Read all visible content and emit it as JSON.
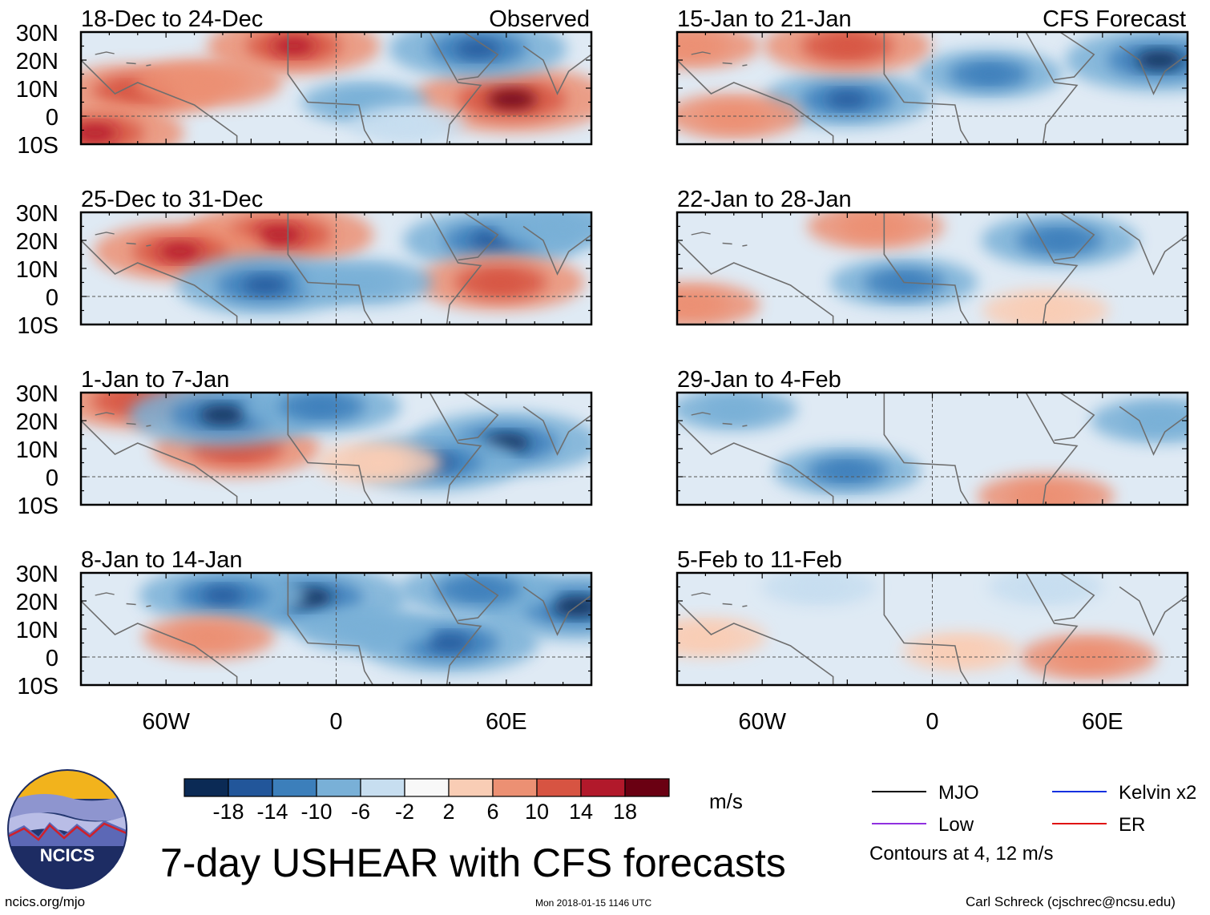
{
  "header": {
    "observed_label": "Observed",
    "forecast_label": "CFS Forecast"
  },
  "chart_data": {
    "type": "heatmap",
    "variable": "7-day USHEAR",
    "units": "m/s",
    "title": "7-day USHEAR with CFS forecasts",
    "lat_ticks": [
      "30N",
      "20N",
      "10N",
      "0",
      "10S"
    ],
    "lon_ticks": [
      "60W",
      "0",
      "60E"
    ],
    "lat_range": [
      -10,
      30
    ],
    "lon_range": [
      -90,
      90
    ],
    "panels": [
      {
        "period": "18-Dec to 24-Dec",
        "source": "Observed",
        "blobs": [
          {
            "lon": 62,
            "lat": 6,
            "value": 20
          },
          {
            "lon": -70,
            "lat": 9,
            "value": 13
          },
          {
            "lon": -15,
            "lat": 25,
            "value": 15
          },
          {
            "lon": 50,
            "lat": 24,
            "value": -16
          },
          {
            "lon": -45,
            "lat": 12,
            "value": 10
          },
          {
            "lon": -85,
            "lat": -6,
            "value": 16
          },
          {
            "lon": 10,
            "lat": 5,
            "value": -6
          },
          {
            "lon": 25,
            "lat": -3,
            "value": -4
          }
        ]
      },
      {
        "period": "25-Dec to 31-Dec",
        "source": "Observed",
        "blobs": [
          {
            "lon": -20,
            "lat": 22,
            "value": 18
          },
          {
            "lon": -55,
            "lat": 16,
            "value": 15
          },
          {
            "lon": -25,
            "lat": 4,
            "value": -16
          },
          {
            "lon": 55,
            "lat": 20,
            "value": -16
          },
          {
            "lon": 58,
            "lat": 5,
            "value": 14
          },
          {
            "lon": 10,
            "lat": 5,
            "value": -8
          },
          {
            "lon": 80,
            "lat": 25,
            "value": -8
          }
        ]
      },
      {
        "period": "1-Jan to 7-Jan",
        "source": "Observed",
        "blobs": [
          {
            "lon": -70,
            "lat": 27,
            "value": 14
          },
          {
            "lon": -35,
            "lat": 10,
            "value": 14
          },
          {
            "lon": -40,
            "lat": 22,
            "value": -18
          },
          {
            "lon": 60,
            "lat": 12,
            "value": -18
          },
          {
            "lon": 35,
            "lat": 5,
            "value": -14
          },
          {
            "lon": -5,
            "lat": 25,
            "value": -12
          },
          {
            "lon": 15,
            "lat": 5,
            "value": 6
          }
        ]
      },
      {
        "period": "8-Jan to 14-Jan",
        "source": "Observed",
        "blobs": [
          {
            "lon": -10,
            "lat": 21,
            "value": -20
          },
          {
            "lon": 85,
            "lat": 18,
            "value": -20
          },
          {
            "lon": 40,
            "lat": 5,
            "value": -16
          },
          {
            "lon": -40,
            "lat": 22,
            "value": -14
          },
          {
            "lon": -45,
            "lat": 7,
            "value": 7
          },
          {
            "lon": 50,
            "lat": 24,
            "value": -12
          },
          {
            "lon": 10,
            "lat": 10,
            "value": -8
          }
        ]
      },
      {
        "period": "15-Jan to 21-Jan",
        "source": "CFS Forecast",
        "blobs": [
          {
            "lon": 80,
            "lat": 20,
            "value": -18
          },
          {
            "lon": -30,
            "lat": 6,
            "value": -14
          },
          {
            "lon": 20,
            "lat": 15,
            "value": -10
          },
          {
            "lon": -30,
            "lat": 25,
            "value": 14
          },
          {
            "lon": -70,
            "lat": 0,
            "value": 8
          },
          {
            "lon": -85,
            "lat": 25,
            "value": 8
          }
        ]
      },
      {
        "period": "22-Jan to 28-Jan",
        "source": "CFS Forecast",
        "blobs": [
          {
            "lon": 45,
            "lat": 20,
            "value": -12
          },
          {
            "lon": -10,
            "lat": 5,
            "value": -10
          },
          {
            "lon": -20,
            "lat": 25,
            "value": 8
          },
          {
            "lon": 40,
            "lat": -5,
            "value": 6
          },
          {
            "lon": -85,
            "lat": -3,
            "value": 8
          }
        ]
      },
      {
        "period": "29-Jan to 4-Feb",
        "source": "CFS Forecast",
        "blobs": [
          {
            "lon": -30,
            "lat": 2,
            "value": -10
          },
          {
            "lon": 40,
            "lat": -7,
            "value": 8
          },
          {
            "lon": 80,
            "lat": 20,
            "value": -8
          },
          {
            "lon": -70,
            "lat": 24,
            "value": -6
          }
        ]
      },
      {
        "period": "5-Feb to 11-Feb",
        "source": "CFS Forecast",
        "blobs": [
          {
            "lon": 55,
            "lat": 0,
            "value": 8
          },
          {
            "lon": -80,
            "lat": 7,
            "value": 5
          },
          {
            "lon": 10,
            "lat": 2,
            "value": 4
          },
          {
            "lon": -40,
            "lat": 25,
            "value": -4
          },
          {
            "lon": 40,
            "lat": 25,
            "value": -4
          }
        ]
      }
    ]
  },
  "colorbar": {
    "labels": [
      "-18",
      "-14",
      "-10",
      "-6",
      "-2",
      "2",
      "6",
      "10",
      "14",
      "18"
    ],
    "colors": [
      "#0b2a55",
      "#22569a",
      "#3c7fbb",
      "#79b0d7",
      "#c7def0",
      "#f8f8f8",
      "#f9cdb5",
      "#ec9073",
      "#d75442",
      "#b2192b",
      "#6a0012"
    ],
    "units": "m/s"
  },
  "legend": {
    "items": [
      {
        "label": "MJO",
        "color": "#000000"
      },
      {
        "label": "Kelvin x2",
        "color": "#1030e0"
      },
      {
        "label": "Low",
        "color": "#9030e0"
      },
      {
        "label": "ER",
        "color": "#e01010"
      }
    ],
    "contours_note": "Contours at 4, 12 m/s"
  },
  "footer": {
    "title": "7-day USHEAR with CFS forecasts",
    "site": "ncics.org/mjo",
    "timestamp": "Mon 2018-01-15 1146 UTC",
    "credit": "Carl Schreck (cjschrec@ncsu.edu)",
    "logo_text": "NCICS"
  }
}
